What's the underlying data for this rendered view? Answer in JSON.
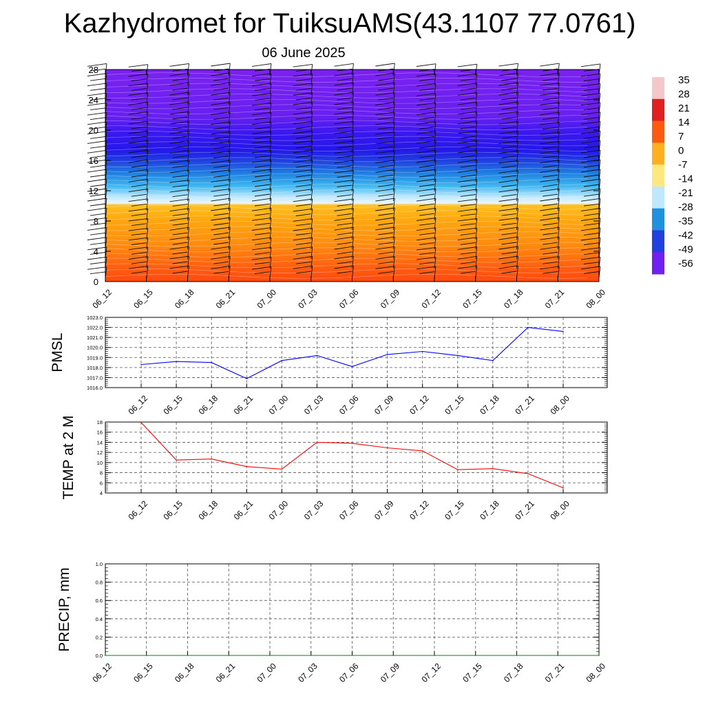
{
  "header": {
    "title": "Kazhydromet for TuiksuAMS(43.1107 77.0761)",
    "subtitle": "06 June 2025"
  },
  "chart_data": [
    {
      "type": "heatmap",
      "x_tick_labels": [
        "06_12",
        "06_15",
        "06_18",
        "06_21",
        "07_00",
        "07_03",
        "07_06",
        "07_09",
        "07_12",
        "07_15",
        "07_18",
        "07_21",
        "08_00"
      ],
      "y_tick_labels": [
        "0",
        "4",
        "8",
        "12",
        "16",
        "20",
        "24",
        "28"
      ],
      "ylim": [
        0,
        28
      ],
      "colorbar": {
        "labels": [
          "35",
          "28",
          "21",
          "14",
          "7",
          "0",
          "-7",
          "-14",
          "-21",
          "-28",
          "-35",
          "-42",
          "-49",
          "-56"
        ],
        "colors": [
          "#f4c8c8",
          "#e02020",
          "#ff5a10",
          "#ffb020",
          "#ffe880",
          "#bfe8ff",
          "#2090e0",
          "#2040e0",
          "#7020f0"
        ]
      },
      "has_wind_barbs": true
    },
    {
      "type": "line",
      "ylabel": "PMSL",
      "x_tick_labels": [
        "06_12",
        "06_15",
        "06_18",
        "06_21",
        "07_00",
        "07_03",
        "07_06",
        "07_09",
        "07_12",
        "07_15",
        "07_18",
        "07_21",
        "08_00"
      ],
      "y_tick_labels": [
        "1023.0",
        "1022.0",
        "1021.0",
        "1020.0",
        "1019.0",
        "1018.0",
        "1017.0",
        "1016.0"
      ],
      "ylim": [
        1016.0,
        1023.0
      ],
      "series": [
        {
          "color": "#0000ff",
          "values": [
            1018.3,
            1018.6,
            1018.5,
            1016.9,
            1018.7,
            1019.2,
            1018.1,
            1019.3,
            1019.6,
            1019.2,
            1018.7,
            1022.0,
            1021.6
          ]
        }
      ],
      "grid": true
    },
    {
      "type": "line",
      "ylabel": "TEMP at 2 M",
      "x_tick_labels": [
        "06_12",
        "06_15",
        "06_18",
        "06_21",
        "07_00",
        "07_03",
        "07_06",
        "07_09",
        "07_12",
        "07_15",
        "07_18",
        "07_21",
        "08_00"
      ],
      "y_tick_labels": [
        "18",
        "16",
        "14",
        "12",
        "10",
        "8",
        "6",
        "4"
      ],
      "ylim": [
        4,
        18
      ],
      "series": [
        {
          "color": "#ff0000",
          "values": [
            17.9,
            10.5,
            10.7,
            9.2,
            8.7,
            14.0,
            13.8,
            12.9,
            12.3,
            8.6,
            8.8,
            7.8,
            5.0
          ]
        }
      ],
      "grid": true
    },
    {
      "type": "line",
      "ylabel": "PRECIP, mm",
      "x_tick_labels": [
        "06_12",
        "06_15",
        "06_18",
        "06_21",
        "07_00",
        "07_03",
        "07_06",
        "07_09",
        "07_12",
        "07_15",
        "07_18",
        "07_21",
        "08_00"
      ],
      "y_tick_labels": [
        "1.0",
        "0.8",
        "0.6",
        "0.4",
        "0.2",
        "0.0"
      ],
      "ylim": [
        0.0,
        1.0
      ],
      "series": [
        {
          "color": "#008000",
          "values": [
            0,
            0,
            0,
            0,
            0,
            0,
            0,
            0,
            0,
            0,
            0,
            0,
            0
          ]
        }
      ],
      "grid": true
    }
  ]
}
